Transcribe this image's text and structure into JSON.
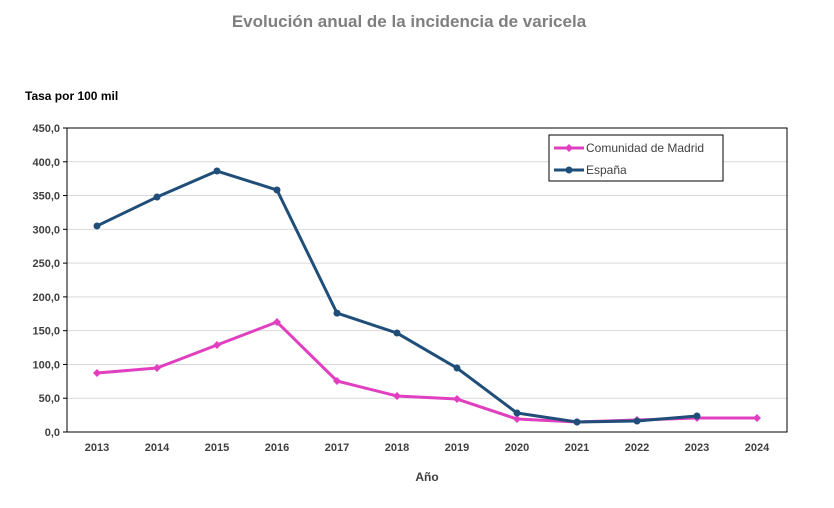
{
  "chart_data": {
    "type": "line",
    "title": "Evolución anual de la incidencia de varicela",
    "ylabel": "Tasa por 100 mil",
    "xlabel": "Año",
    "ylim": [
      0,
      450
    ],
    "yticks": [
      "0,0",
      "50,0",
      "100,0",
      "150,0",
      "200,0",
      "250,0",
      "300,0",
      "350,0",
      "400,0",
      "450,0"
    ],
    "ytick_values": [
      0,
      50,
      100,
      150,
      200,
      250,
      300,
      350,
      400,
      450
    ],
    "categories": [
      "2013",
      "2014",
      "2015",
      "2016",
      "2017",
      "2018",
      "2019",
      "2020",
      "2021",
      "2022",
      "2023",
      "2024"
    ],
    "grid": true,
    "legend_position": "top-right",
    "series": [
      {
        "name": "Comunidad de Madrid",
        "color": "#e040c0",
        "marker": "diamond",
        "values": [
          87.3,
          94.7,
          128.8,
          162.8,
          75.5,
          53.3,
          48.8,
          19.2,
          14.8,
          17.8,
          20.7,
          20.7
        ]
      },
      {
        "name": "España",
        "color": "#1f4e79",
        "marker": "circle",
        "values": [
          305.0,
          347.8,
          386.3,
          358.2,
          176.0,
          146.5,
          94.7,
          28.1,
          14.8,
          16.3,
          23.7,
          null
        ]
      }
    ]
  }
}
